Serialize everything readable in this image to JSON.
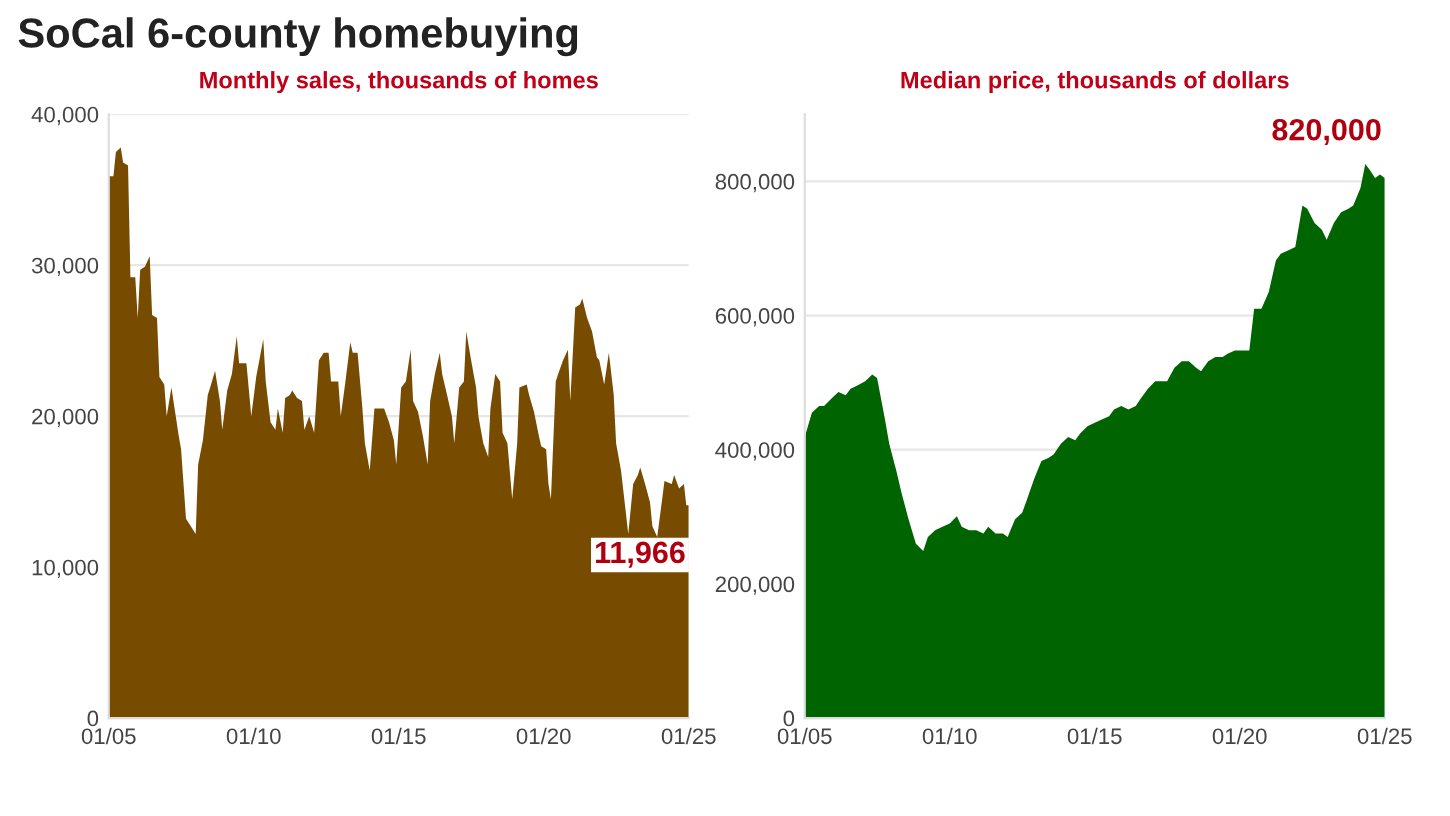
{
  "chart_data": [
    {
      "type": "area",
      "title": "SoCal 6-county homebuying",
      "subtitle": "Monthly sales, thousands of homes",
      "annotations": [
        "11,966"
      ],
      "x": [
        "2005-01",
        "2005-03",
        "2005-04",
        "2005-06",
        "2005-07",
        "2005-09",
        "2005-10",
        "2005-12",
        "2006-01",
        "2006-02",
        "2006-04",
        "2006-06",
        "2006-07",
        "2006-09",
        "2006-10",
        "2006-12",
        "2007-01",
        "2007-03",
        "2007-05",
        "2007-06",
        "2007-07",
        "2007-09",
        "2007-11",
        "2008-01",
        "2008-02",
        "2008-04",
        "2008-06",
        "2008-07",
        "2008-09",
        "2008-11",
        "2008-12",
        "2009-02",
        "2009-04",
        "2009-06",
        "2009-07",
        "2009-10",
        "2009-12",
        "2010-02",
        "2010-05",
        "2010-06",
        "2010-08",
        "2010-10",
        "2010-11",
        "2011-01",
        "2011-02",
        "2011-04",
        "2011-05",
        "2011-07",
        "2011-09",
        "2011-10",
        "2011-12",
        "2012-02",
        "2012-03",
        "2012-04",
        "2012-06",
        "2012-08",
        "2012-09",
        "2012-12",
        "2013-01",
        "2013-03",
        "2013-05",
        "2013-06",
        "2013-08",
        "2013-10",
        "2013-11",
        "2014-01",
        "2014-03",
        "2014-04",
        "2014-07",
        "2014-09",
        "2014-11",
        "2014-12",
        "2015-02",
        "2015-04",
        "2015-06",
        "2015-07",
        "2015-09",
        "2015-11",
        "2016-01",
        "2016-02",
        "2016-04",
        "2016-06",
        "2016-07",
        "2016-09",
        "2016-11",
        "2016-12",
        "2017-02",
        "2017-04",
        "2017-05",
        "2017-07",
        "2017-09",
        "2017-10",
        "2017-12",
        "2018-02",
        "2018-03",
        "2018-05",
        "2018-07",
        "2018-08",
        "2018-10",
        "2018-12",
        "2019-02",
        "2019-03",
        "2019-06",
        "2019-07",
        "2019-09",
        "2019-11",
        "2019-12",
        "2020-02",
        "2020-03",
        "2020-04",
        "2020-06",
        "2020-07",
        "2020-09",
        "2020-11",
        "2020-12",
        "2021-02",
        "2021-04",
        "2021-05",
        "2021-07",
        "2021-09",
        "2021-11",
        "2021-12",
        "2022-02",
        "2022-04",
        "2022-06",
        "2022-07",
        "2022-09",
        "2022-11",
        "2022-12",
        "2023-02",
        "2023-04",
        "2023-05",
        "2023-07",
        "2023-09",
        "2023-10",
        "2023-12",
        "2024-02",
        "2024-03",
        "2024-06",
        "2024-07",
        "2024-09",
        "2024-11",
        "2024-12",
        "2025-01"
      ],
      "series": [
        {
          "color": "#774c00",
          "values": [
            35900,
            35900,
            37500,
            37800,
            36800,
            36600,
            29200,
            29200,
            26500,
            29700,
            29900,
            30600,
            26700,
            26500,
            22600,
            22100,
            20000,
            21900,
            19800,
            18700,
            17800,
            13200,
            12700,
            12200,
            16800,
            18400,
            21400,
            21900,
            23000,
            21000,
            19100,
            21700,
            22800,
            25300,
            23500,
            23500,
            20000,
            22600,
            25100,
            22300,
            19600,
            19100,
            20500,
            18900,
            21200,
            21400,
            21700,
            21200,
            21000,
            19100,
            20000,
            18900,
            21200,
            23700,
            24200,
            24200,
            22300,
            22300,
            20000,
            22300,
            24900,
            24200,
            24200,
            20500,
            18200,
            16400,
            20500,
            20500,
            20500,
            19600,
            18400,
            16800,
            21900,
            22300,
            24400,
            21000,
            20300,
            18700,
            16800,
            21000,
            22800,
            24200,
            22800,
            21400,
            20000,
            18200,
            21900,
            22300,
            25600,
            23700,
            21900,
            20000,
            18200,
            17300,
            20500,
            22800,
            22300,
            18900,
            18200,
            14500,
            18200,
            21900,
            22100,
            21400,
            20300,
            18700,
            18000,
            17800,
            15500,
            14500,
            22300,
            22800,
            23700,
            24400,
            21000,
            27200,
            27400,
            27800,
            26500,
            25600,
            23900,
            23700,
            22100,
            24200,
            21400,
            18200,
            16400,
            13600,
            12200,
            15500,
            16100,
            16600,
            15500,
            14300,
            12700,
            12000,
            14500,
            15700,
            15500,
            16100,
            15200,
            15500,
            14100,
            14100
          ]
        }
      ],
      "xlim": [
        "2005-01",
        "2025-01"
      ],
      "xticks": [
        {
          "value": "2005-01",
          "label": "01/05"
        },
        {
          "value": "2010-01",
          "label": "01/10"
        },
        {
          "value": "2015-01",
          "label": "01/15"
        },
        {
          "value": "2020-01",
          "label": "01/20"
        },
        {
          "value": "2025-01",
          "label": "01/25"
        }
      ],
      "ylim": [
        0,
        40000
      ],
      "yticks": [
        0,
        {
          "value": 10000,
          "label": "10,000"
        },
        {
          "value": 20000,
          "label": "20,000"
        },
        {
          "value": 30000,
          "label": "30,000"
        },
        {
          "value": 40000,
          "label": "40,000"
        }
      ],
      "grid": "y"
    },
    {
      "type": "area",
      "subtitle": "Median price, thousands of dollars",
      "annotations": [
        "820,000"
      ],
      "x": [
        "2005-01",
        "2005-04",
        "2005-07",
        "2005-09",
        "2005-12",
        "2006-03",
        "2006-06",
        "2006-08",
        "2006-11",
        "2007-02",
        "2007-05",
        "2007-07",
        "2007-10",
        "2007-12",
        "2008-03",
        "2008-05",
        "2008-08",
        "2008-11",
        "2009-02",
        "2009-04",
        "2009-07",
        "2009-10",
        "2010-01",
        "2010-04",
        "2010-06",
        "2010-09",
        "2010-12",
        "2011-03",
        "2011-05",
        "2011-08",
        "2011-11",
        "2012-01",
        "2012-04",
        "2012-07",
        "2012-09",
        "2012-12",
        "2013-03",
        "2013-06",
        "2013-08",
        "2013-11",
        "2014-02",
        "2014-05",
        "2014-07",
        "2014-10",
        "2015-01",
        "2015-04",
        "2015-07",
        "2015-09",
        "2015-12",
        "2016-03",
        "2016-06",
        "2016-08",
        "2016-11",
        "2017-02",
        "2017-05",
        "2017-07",
        "2017-10",
        "2018-01",
        "2018-04",
        "2018-07",
        "2018-09",
        "2018-12",
        "2019-03",
        "2019-06",
        "2019-08",
        "2019-11",
        "2020-02",
        "2020-05",
        "2020-07",
        "2020-10",
        "2021-01",
        "2021-04",
        "2021-06",
        "2021-09",
        "2021-12",
        "2022-03",
        "2022-05",
        "2022-08",
        "2022-11",
        "2023-01",
        "2023-04",
        "2023-07",
        "2023-10",
        "2023-12",
        "2024-03",
        "2024-05",
        "2024-07",
        "2024-09",
        "2024-11",
        "2025-01"
      ],
      "series": [
        {
          "color": "#006400",
          "values": [
            419000,
            455000,
            465000,
            465000,
            476000,
            486000,
            481000,
            491000,
            496000,
            502000,
            512000,
            507000,
            450000,
            409000,
            368000,
            337000,
            296000,
            260000,
            249000,
            270000,
            280000,
            285000,
            290000,
            301000,
            285000,
            280000,
            280000,
            275000,
            285000,
            275000,
            275000,
            270000,
            296000,
            306000,
            326000,
            357000,
            383000,
            388000,
            393000,
            409000,
            419000,
            414000,
            424000,
            435000,
            440000,
            445000,
            450000,
            460000,
            465000,
            460000,
            465000,
            476000,
            491000,
            502000,
            502000,
            502000,
            522000,
            532000,
            532000,
            522000,
            517000,
            532000,
            538000,
            538000,
            543000,
            548000,
            548000,
            548000,
            610000,
            610000,
            635000,
            682000,
            692000,
            697000,
            702000,
            764000,
            759000,
            738000,
            728000,
            713000,
            738000,
            754000,
            759000,
            764000,
            790000,
            826000,
            816000,
            805000,
            810000,
            805000
          ]
        }
      ],
      "xlim": [
        "2005-01",
        "2025-01"
      ],
      "xticks": [
        {
          "value": "2005-01",
          "label": "01/05"
        },
        {
          "value": "2010-01",
          "label": "01/10"
        },
        {
          "value": "2015-01",
          "label": "01/15"
        },
        {
          "value": "2020-01",
          "label": "01/20"
        },
        {
          "value": "2025-01",
          "label": "01/25"
        }
      ],
      "ylim": [
        0,
        900000
      ],
      "yticks": [
        0,
        {
          "value": 200000,
          "label": "200,000"
        },
        {
          "value": 400000,
          "label": "400,000"
        },
        {
          "value": 600000,
          "label": "600,000"
        },
        {
          "value": 800000,
          "label": "800,000"
        }
      ],
      "grid": "y"
    }
  ]
}
